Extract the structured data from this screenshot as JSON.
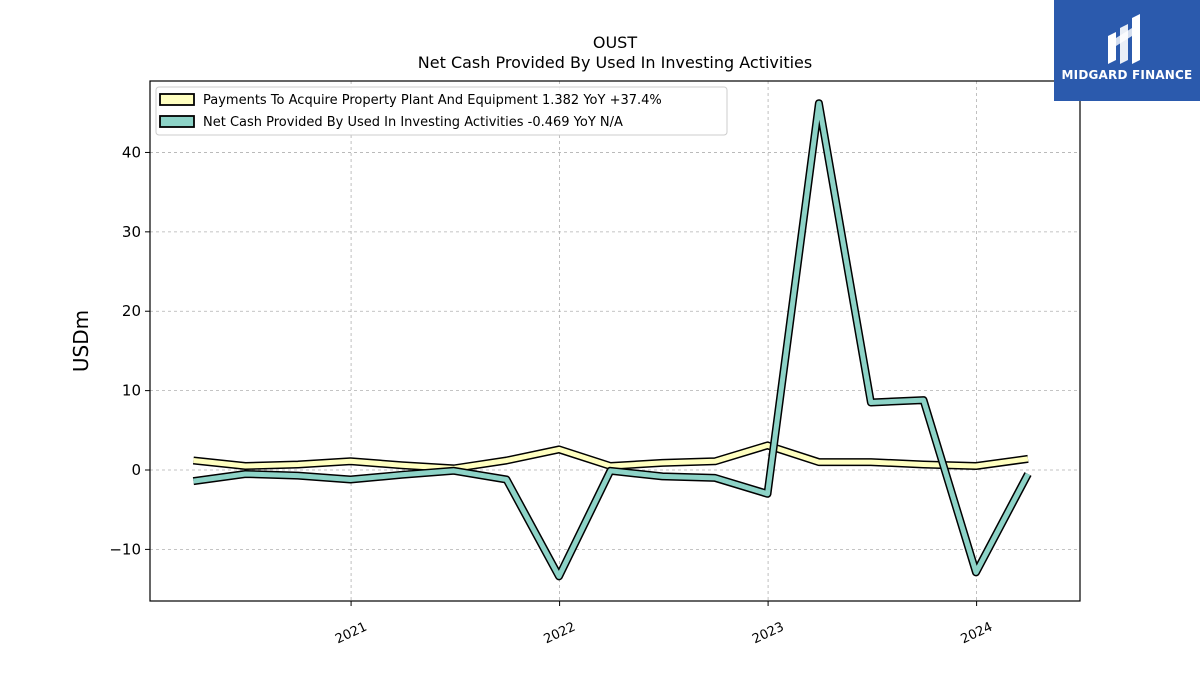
{
  "chart_data": {
    "type": "line",
    "title": "OUST",
    "subtitle": "Net Cash Provided By Used In Investing Activities",
    "ylabel": "USDm",
    "xlabel": "",
    "xlim": [
      "2020-01-15",
      "2024-06-30"
    ],
    "ylim": [
      -16.5,
      49
    ],
    "yticks": [
      -10,
      0,
      10,
      20,
      30,
      40
    ],
    "ytick_labels": [
      "−10",
      "0",
      "10",
      "20",
      "30",
      "40"
    ],
    "xticks": [
      "2021-01-01",
      "2022-01-01",
      "2023-01-01",
      "2024-01-01"
    ],
    "xtick_labels": [
      "2021",
      "2022",
      "2023",
      "2024"
    ],
    "grid": true,
    "legend_position": "top-left",
    "x": [
      "2020-03-31",
      "2020-06-30",
      "2020-09-30",
      "2020-12-31",
      "2021-03-31",
      "2021-06-30",
      "2021-09-30",
      "2021-12-31",
      "2022-03-31",
      "2022-06-30",
      "2022-09-30",
      "2022-12-31",
      "2023-03-31",
      "2023-06-30",
      "2023-09-30",
      "2023-12-31",
      "2024-03-31"
    ],
    "series": [
      {
        "name": "Payments To Acquire Property Plant And Equipment",
        "legend_label": "Payments To Acquire Property Plant And Equipment  1.382 YoY +37.4%",
        "color": "#ffffc0",
        "values": [
          1.2,
          0.5,
          0.7,
          1.1,
          0.6,
          0.2,
          1.2,
          2.6,
          0.5,
          0.9,
          1.1,
          3.1,
          1.0,
          1.0,
          0.7,
          0.5,
          1.4
        ]
      },
      {
        "name": "Net Cash Provided By Used In Investing Activities",
        "legend_label": "Net Cash Provided By Used In Investing Activities  -0.469 YoY N/A",
        "color": "#8dd3c7",
        "values": [
          -1.4,
          -0.5,
          -0.7,
          -1.2,
          -0.6,
          -0.1,
          -1.2,
          -13.4,
          -0.1,
          -0.8,
          -1.0,
          -3.0,
          46.2,
          8.5,
          8.8,
          -12.9,
          -0.5
        ]
      }
    ]
  },
  "logo": {
    "text": "MIDGARD FINANCE",
    "color": "#2b5aad"
  }
}
